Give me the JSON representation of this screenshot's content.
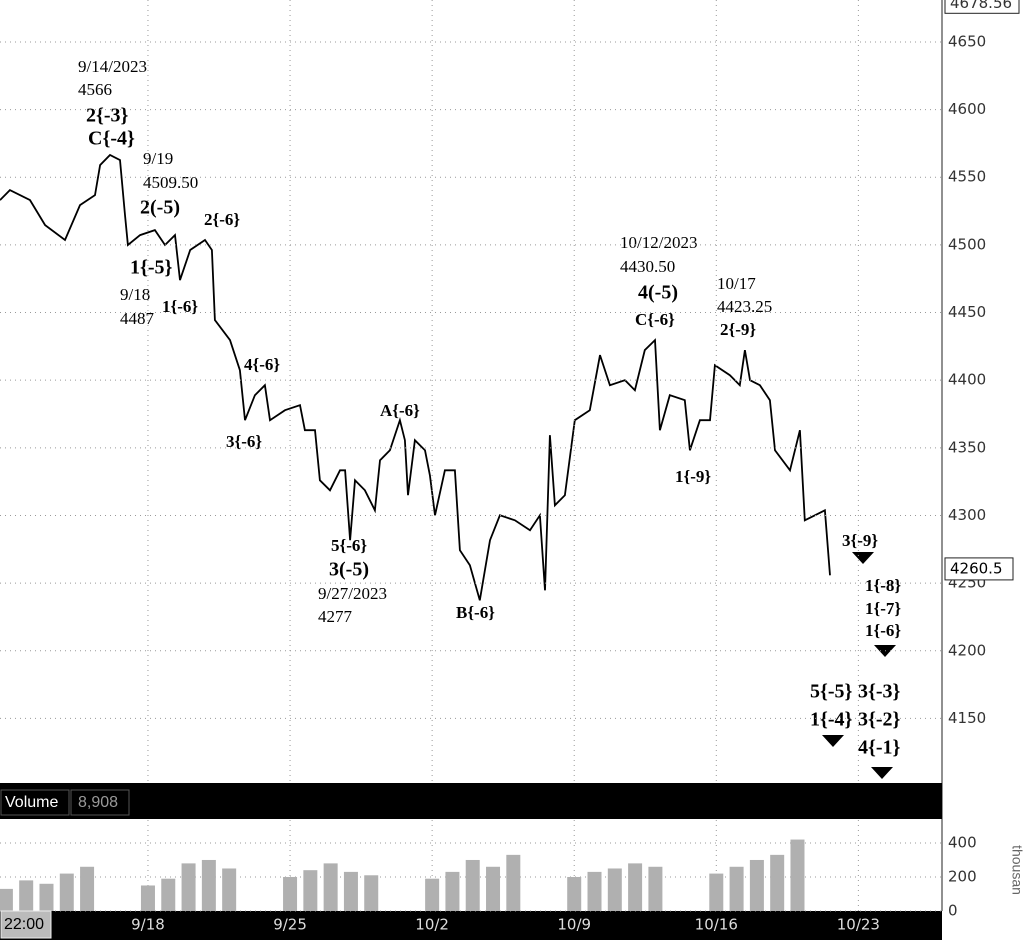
{
  "chart_data": [
    {
      "type": "line",
      "color": "#000000",
      "x": [
        10.71,
        11.2,
        12.19,
        12.93,
        13.91,
        14.65,
        15.39,
        15.64,
        16.13,
        16.62,
        16.87,
        17.01,
        17.61,
        18.34,
        18.84,
        19.33,
        19.58,
        20.08,
        20.81,
        21.15,
        21.3,
        22.04,
        22.53,
        22.78,
        23.27,
        23.76,
        24.01,
        24.75,
        25.49,
        25.73,
        26.23,
        26.47,
        26.97,
        27.46,
        27.71,
        27.96,
        28.2,
        28.69,
        29.18,
        29.43,
        29.92,
        30.41,
        30.66,
        30.81,
        31.15,
        31.65,
        31.89,
        32.14,
        32.63,
        33.12,
        33.37,
        33.86,
        34.35,
        34.85,
        35.34,
        36.08,
        36.82,
        37.31,
        37.56,
        37.8,
        38.05,
        38.54,
        39.03,
        39.77,
        40.27,
        40.76,
        41.5,
        41.99,
        42.48,
        42.98,
        43.22,
        43.71,
        44.45,
        44.7,
        45.19,
        45.69,
        45.93,
        46.67,
        47.16,
        47.41,
        47.66,
        48.15,
        48.64,
        48.89,
        49.63,
        50.12,
        50.36,
        50.86,
        51.35,
        51.6
      ],
      "values": [
        4533.1,
        4540.5,
        4533.1,
        4514.6,
        4503.6,
        4529.4,
        4536.8,
        4559.0,
        4566.4,
        4562.7,
        4522.0,
        4499.9,
        4507.2,
        4510.9,
        4499.9,
        4507.2,
        4474.0,
        4496.2,
        4503.6,
        4496.2,
        4444.4,
        4429.6,
        4407.4,
        4370.4,
        4388.9,
        4396.3,
        4370.4,
        4377.8,
        4381.5,
        4363.0,
        4363.0,
        4326.0,
        4318.6,
        4333.4,
        4333.4,
        4281.7,
        4326.0,
        4318.6,
        4303.8,
        4340.8,
        4348.2,
        4370.4,
        4355.6,
        4315.0,
        4355.6,
        4348.2,
        4329.7,
        4300.1,
        4333.4,
        4333.4,
        4274.3,
        4263.2,
        4237.3,
        4281.7,
        4300.1,
        4296.4,
        4289.1,
        4300.1,
        4244.7,
        4359.3,
        4307.5,
        4315.0,
        4370.4,
        4377.8,
        4418.5,
        4396.3,
        4400.0,
        4392.6,
        4422.2,
        4429.6,
        4363.0,
        4388.9,
        4385.2,
        4348.2,
        4370.4,
        4370.4,
        4411.1,
        4403.7,
        4396.3,
        4422.2,
        4400.0,
        4396.3,
        4385.2,
        4348.2,
        4333.4,
        4363.0,
        4296.4,
        4300.1,
        4303.8,
        4255.8
      ],
      "xlim": [
        10.71,
        57.12
      ],
      "ylim": [
        4103,
        4681
      ],
      "xticks": [
        {
          "value": 18,
          "label": "9/18"
        },
        {
          "value": 25,
          "label": "9/25"
        },
        {
          "value": 32,
          "label": "10/2"
        },
        {
          "value": 39,
          "label": "10/9"
        },
        {
          "value": 46,
          "label": "10/16"
        },
        {
          "value": 53,
          "label": "10/23"
        }
      ],
      "yticks": [
        4150,
        4200,
        4250,
        4300,
        4350,
        4400,
        4450,
        4500,
        4550,
        4600,
        4650
      ],
      "grid": true,
      "max_label": {
        "value": 4678.56,
        "label": "4678.56"
      },
      "last_price": {
        "value": 4260.5,
        "label": "4260.5"
      },
      "corner_time": "22:00",
      "annotations": [
        "9/14/2023",
        "4566",
        "2{-3}",
        "C{-4}",
        "9/19",
        "4509.50",
        "2(-5)",
        "2{-6}",
        "1{-5}",
        "9/18",
        "4487",
        "1{-6}",
        "4{-6}",
        "3{-6}",
        "A{-6}",
        "5{-6}",
        "3(-5)",
        "9/27/2023",
        "4277",
        "B{-6}",
        "10/12/2023",
        "4430.50",
        "4(-5)",
        "C{-6}",
        "10/17",
        "4423.25",
        "2{-9}",
        "1{-9}",
        "3{-9}",
        "1{-8}",
        "1{-7}",
        "1{-6}",
        "5{-5}",
        "3{-3}",
        "1{-4}",
        "3{-2}",
        "4{-1}"
      ]
    },
    {
      "type": "bar",
      "title": "Volume",
      "subtitle": "8,908",
      "color": "#b0b0b0",
      "y_label": "thousan",
      "x": [
        11,
        12,
        13,
        14,
        15,
        18,
        19,
        20,
        21,
        22,
        25,
        26,
        27,
        28,
        29,
        32,
        33,
        34,
        35,
        36,
        39,
        40,
        41,
        42,
        43,
        46,
        47,
        48,
        49,
        50
      ],
      "values": [
        130,
        180,
        160,
        220,
        260,
        150,
        190,
        280,
        300,
        250,
        200,
        240,
        280,
        230,
        210,
        190,
        230,
        300,
        260,
        330,
        200,
        230,
        250,
        280,
        260,
        220,
        260,
        300,
        330,
        420
      ],
      "ylim": [
        0,
        535
      ],
      "yticks": [
        0,
        200,
        400
      ],
      "grid": true
    }
  ]
}
